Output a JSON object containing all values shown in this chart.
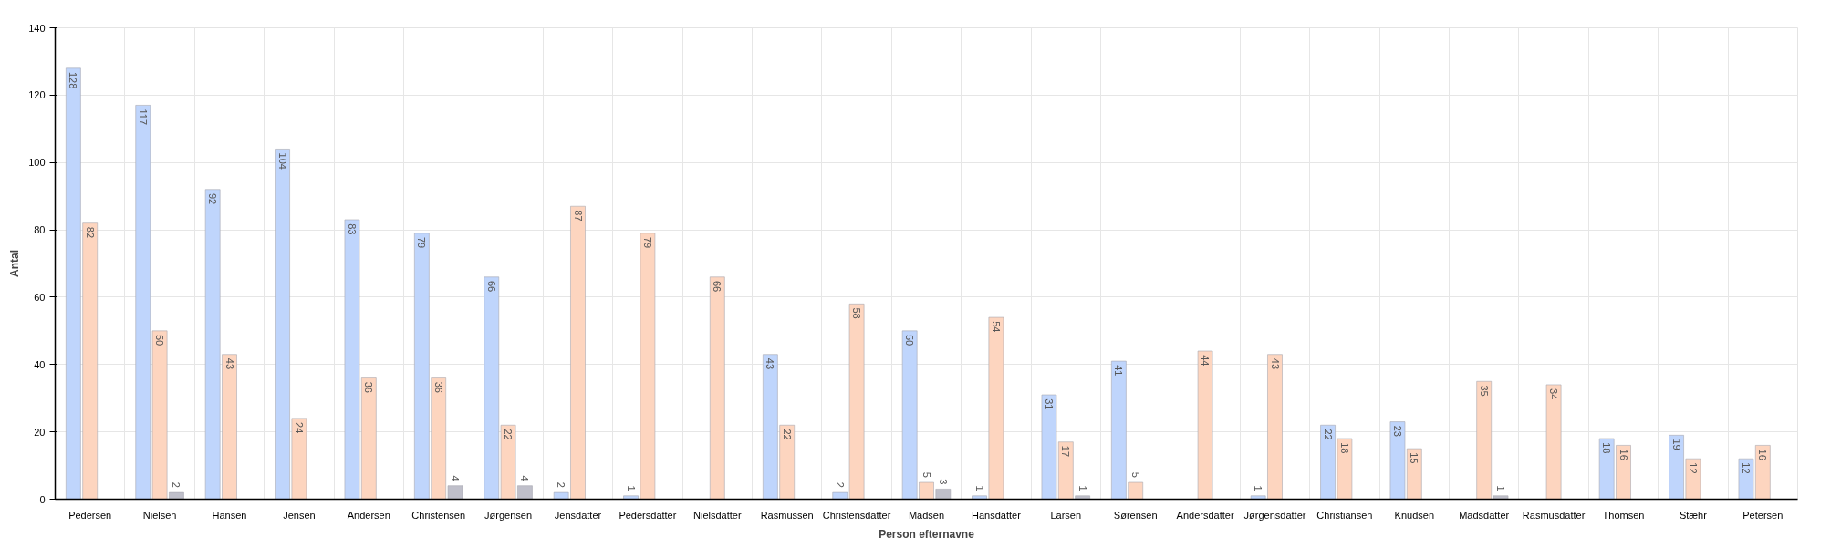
{
  "chart_data": {
    "type": "bar",
    "xlabel": "Person efternavne",
    "ylabel": "Antal",
    "categories": [
      "Pedersen",
      "Nielsen",
      "Hansen",
      "Jensen",
      "Andersen",
      "Christensen",
      "Jørgensen",
      "Jensdatter",
      "Pedersdatter",
      "Nielsdatter",
      "Rasmussen",
      "Christensdatter",
      "Madsen",
      "Hansdatter",
      "Larsen",
      "Sørensen",
      "Andersdatter",
      "Jørgensdatter",
      "Christiansen",
      "Knudsen",
      "Madsdatter",
      "Rasmusdatter",
      "Thomsen",
      "Stæhr",
      "Petersen"
    ],
    "series": [
      {
        "color": "#bfd5fc",
        "values": [
          128,
          117,
          92,
          104,
          83,
          79,
          66,
          2,
          1,
          null,
          43,
          2,
          50,
          1,
          31,
          41,
          null,
          1,
          22,
          23,
          null,
          null,
          18,
          19,
          12
        ]
      },
      {
        "color": "#fdd5bf",
        "values": [
          82,
          50,
          43,
          24,
          36,
          36,
          22,
          87,
          79,
          66,
          22,
          58,
          5,
          54,
          17,
          5,
          44,
          43,
          18,
          15,
          35,
          34,
          16,
          12,
          16
        ]
      },
      {
        "color": "#bfbfca",
        "values": [
          null,
          2,
          null,
          null,
          null,
          4,
          4,
          null,
          null,
          null,
          null,
          null,
          3,
          null,
          1,
          null,
          null,
          null,
          null,
          null,
          1,
          null,
          null,
          null,
          null
        ]
      }
    ],
    "ylim": [
      0,
      140
    ],
    "yticks": [
      0,
      20,
      40,
      60,
      80,
      100,
      120,
      140
    ],
    "grid": true,
    "data_labels": true
  }
}
